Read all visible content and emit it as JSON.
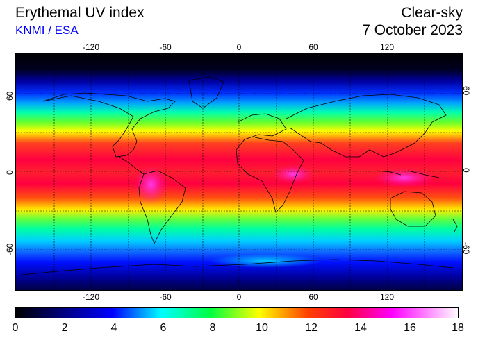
{
  "title": "Erythemal UV index",
  "subtitle": "KNMI / ESA",
  "condition": "Clear-sky",
  "date": "7 October 2023",
  "lon_ticks": [
    "-120",
    "-60",
    "0",
    "60",
    "120"
  ],
  "lat_ticks": [
    "60",
    "0",
    "-60"
  ],
  "colorbar": {
    "labels": [
      "0",
      "2",
      "4",
      "6",
      "8",
      "10",
      "12",
      "14",
      "16",
      "18"
    ],
    "min": 0,
    "max": 18
  },
  "colors": {
    "title_blue": "#0000ff",
    "ocean_band_colors": [
      "#000000",
      "#0000a0",
      "#0000ff",
      "#00c8ff",
      "#00ff80",
      "#ffff00",
      "#ff0000",
      "#ff00aa",
      "#ffffff"
    ]
  }
}
